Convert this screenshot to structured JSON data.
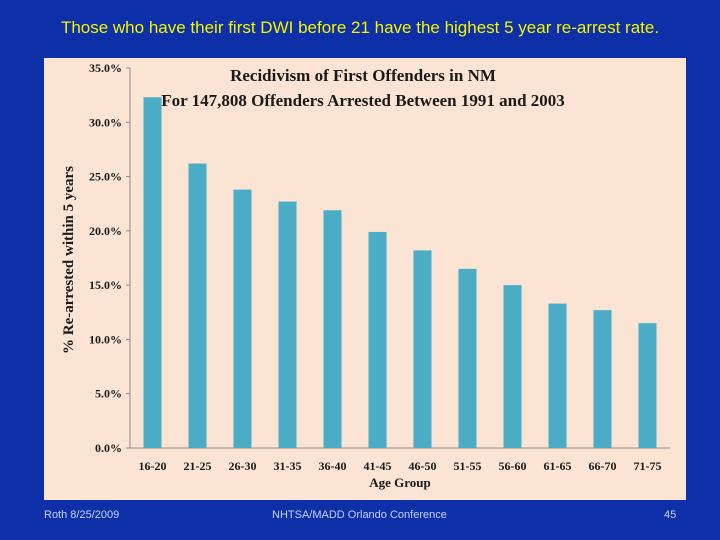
{
  "slide": {
    "title": "Those who have their first DWI before 21 have the highest 5 year re-arrest rate.",
    "footer_left": "Roth 8/25/2009",
    "footer_center": "NHTSA/MADD Orlando Conference",
    "page_number": "45"
  },
  "chart_data": {
    "type": "bar",
    "title": "Recidivism of First Offenders in NM",
    "subtitle": "For 147,808 Offenders Arrested Between 1991 and 2003",
    "xlabel": "Age Group",
    "ylabel": "% Re-arrested within 5 years",
    "ylim": [
      0,
      35
    ],
    "yticks": [
      "0.0%",
      "5.0%",
      "10.0%",
      "15.0%",
      "20.0%",
      "25.0%",
      "30.0%",
      "35.0%"
    ],
    "categories": [
      "16-20",
      "21-25",
      "26-30",
      "31-35",
      "36-40",
      "41-45",
      "46-50",
      "51-55",
      "56-60",
      "61-65",
      "66-70",
      "71-75"
    ],
    "values": [
      32.3,
      26.2,
      23.8,
      22.7,
      21.9,
      19.9,
      18.2,
      16.5,
      15.0,
      13.3,
      12.7,
      11.5
    ],
    "bar_color": "#4bacc6"
  }
}
